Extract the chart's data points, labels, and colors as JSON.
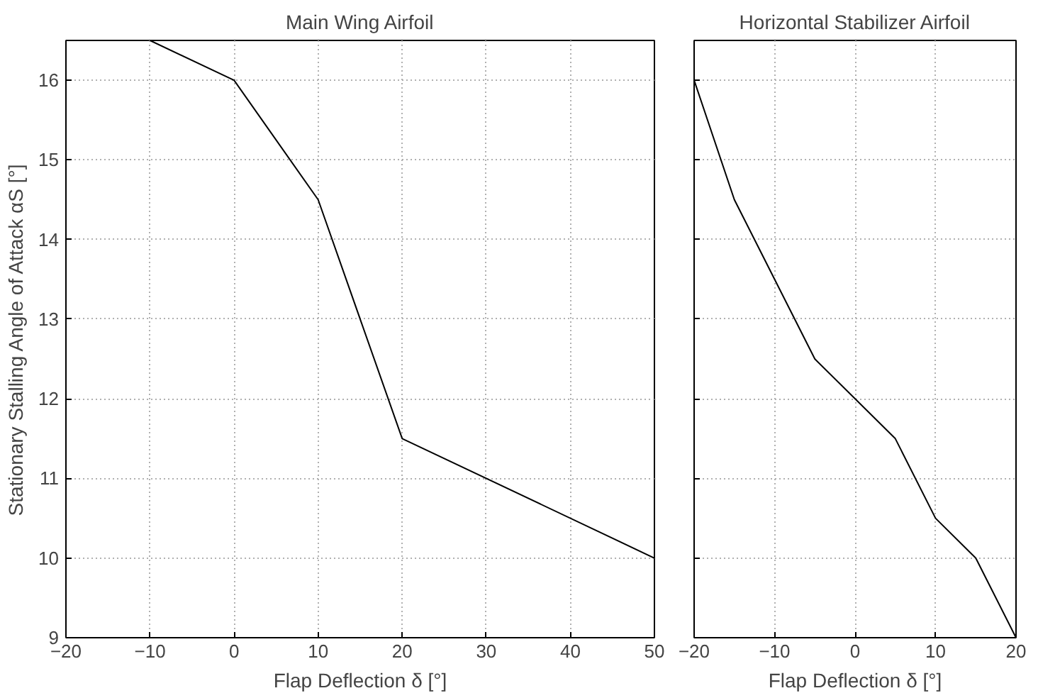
{
  "chart_data": [
    {
      "type": "line",
      "title": "Main Wing Airfoil",
      "xlabel": "Flap Deflection δ [°]",
      "ylabel": "Stationary Stalling Angle of Attack αS [°]",
      "x": [
        -10,
        0,
        10,
        20,
        50
      ],
      "series": [
        {
          "color": "#000000",
          "values": [
            16.5,
            16,
            14.5,
            11.5,
            10
          ]
        }
      ],
      "xlim": [
        -20,
        50
      ],
      "ylim": [
        9,
        16.5
      ],
      "xticks": [
        -20,
        -10,
        0,
        10,
        20,
        30,
        40,
        50
      ],
      "yticks": [
        9,
        10,
        11,
        12,
        13,
        14,
        15,
        16
      ],
      "grid": true,
      "marker": "none",
      "line_style": "solid"
    },
    {
      "type": "line",
      "title": "Horizontal Stabilizer Airfoil",
      "xlabel": "Flap Deflection δ [°]",
      "x": [
        -20,
        -15,
        -5,
        5,
        10,
        15,
        20
      ],
      "series": [
        {
          "color": "#000000",
          "values": [
            16,
            14.5,
            12.5,
            11.5,
            10.5,
            10,
            9
          ]
        }
      ],
      "xlim": [
        -20,
        20
      ],
      "ylim": [
        9,
        16.5
      ],
      "xticks": [
        -20,
        -10,
        0,
        10,
        20
      ],
      "yticks": [
        9,
        10,
        11,
        12,
        13,
        14,
        15,
        16
      ],
      "grid": true,
      "marker": "none",
      "line_style": "solid",
      "tick_labels": "x"
    }
  ]
}
